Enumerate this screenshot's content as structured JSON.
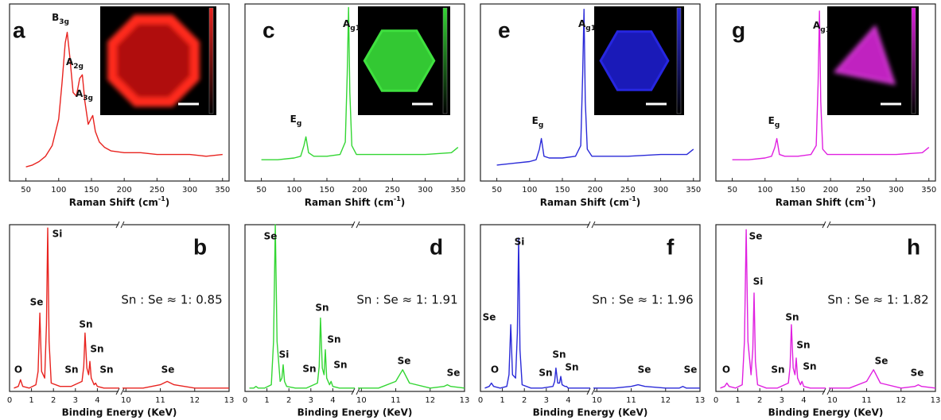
{
  "chart_data": [
    {
      "type": "line",
      "panel": "a",
      "xlabel": [
        "Raman Shift (cm",
        "-1",
        ")"
      ],
      "color": "#e8231f",
      "x": [
        50,
        60,
        70,
        80,
        90,
        100,
        105,
        110,
        113,
        117,
        122,
        127,
        132,
        136,
        140,
        145,
        149,
        152,
        156,
        162,
        170,
        180,
        200,
        225,
        250,
        275,
        300,
        325,
        350
      ],
      "values": [
        8,
        9,
        11,
        14,
        20,
        35,
        55,
        78,
        84,
        70,
        50,
        48,
        58,
        60,
        45,
        32,
        35,
        37,
        28,
        22,
        19,
        17,
        16,
        16,
        15,
        15,
        15,
        14,
        15
      ],
      "xlim": [
        25,
        360
      ],
      "xticks": [
        50,
        100,
        150,
        200,
        250,
        300,
        350
      ],
      "ylim": [
        0,
        100
      ],
      "peaks": [
        {
          "main": "B",
          "sub": "3g"
        },
        {
          "main": "A",
          "sub": "2g"
        },
        {
          "main": "A",
          "sub": "3g"
        }
      ]
    },
    {
      "type": "line",
      "panel": "b",
      "xlabel": "Binding Energy (KeV)",
      "ratio": "Sn : Se ≈ 1: 0.85",
      "color": "#e8231f",
      "x": [
        0.2,
        0.4,
        0.5,
        0.6,
        0.9,
        1.2,
        1.3,
        1.38,
        1.46,
        1.6,
        1.68,
        1.74,
        1.8,
        1.9,
        2.3,
        2.8,
        3.3,
        3.38,
        3.44,
        3.52,
        3.6,
        3.66,
        3.72,
        3.85,
        3.92,
        4.0,
        4.3,
        4.7,
        5.0,
        9.9,
        10.5,
        11.0,
        11.2,
        11.4,
        12.0,
        12.4,
        12.5,
        12.6,
        13.0
      ],
      "values": [
        2,
        3,
        7,
        3,
        2,
        4,
        12,
        47,
        12,
        8,
        40,
        98,
        30,
        5,
        3,
        3,
        6,
        15,
        35,
        14,
        10,
        18,
        8,
        4,
        5,
        3,
        2,
        2,
        2,
        2,
        2,
        4,
        6,
        4,
        2,
        2,
        2,
        2,
        2
      ],
      "xlim": [
        0,
        13
      ],
      "xbreak": [
        5,
        9.9
      ],
      "xticks": [
        0,
        1,
        2,
        3,
        4,
        10,
        11,
        12,
        13
      ],
      "ylim": [
        0,
        100
      ],
      "peaks": [
        "O",
        "Se",
        "Si",
        "Sn",
        "Sn",
        "Sn",
        "Sn",
        "Se"
      ]
    },
    {
      "type": "line",
      "panel": "c",
      "xlabel": [
        "Raman Shift (cm",
        "-1",
        ")"
      ],
      "color": "#33d633",
      "x": [
        50,
        75,
        100,
        110,
        115,
        118,
        122,
        130,
        150,
        170,
        178,
        181,
        183,
        185,
        188,
        195,
        220,
        250,
        300,
        340,
        350
      ],
      "values": [
        12,
        12,
        13,
        14,
        20,
        25,
        16,
        14,
        14,
        15,
        22,
        60,
        98,
        50,
        20,
        15,
        15,
        15,
        15,
        16,
        19
      ],
      "xlim": [
        25,
        360
      ],
      "xticks": [
        50,
        100,
        150,
        200,
        250,
        300,
        350
      ],
      "ylim": [
        0,
        100
      ],
      "peaks": [
        {
          "main": "A",
          "sub": "g1"
        },
        {
          "main": "E",
          "sub": "g"
        }
      ]
    },
    {
      "type": "line",
      "panel": "d",
      "xlabel": "Binding Energy (KeV)",
      "ratio": "Sn : Se ≈ 1: 1.91",
      "color": "#33d633",
      "x": [
        0.2,
        0.4,
        0.5,
        0.6,
        0.9,
        1.2,
        1.3,
        1.38,
        1.46,
        1.6,
        1.68,
        1.74,
        1.8,
        1.9,
        2.3,
        2.8,
        3.3,
        3.38,
        3.44,
        3.52,
        3.6,
        3.66,
        3.72,
        3.85,
        3.92,
        4.0,
        4.3,
        4.7,
        5.0,
        9.9,
        10.5,
        11.0,
        11.2,
        11.4,
        12.0,
        12.4,
        12.5,
        12.6,
        13.0
      ],
      "values": [
        2,
        2,
        3,
        2,
        2,
        4,
        30,
        100,
        30,
        6,
        8,
        16,
        6,
        3,
        2,
        2,
        5,
        15,
        44,
        14,
        10,
        25,
        8,
        4,
        6,
        3,
        2,
        2,
        2,
        2,
        2,
        6,
        13,
        5,
        2,
        3,
        4,
        3,
        2
      ],
      "xlim": [
        0,
        13
      ],
      "xbreak": [
        5,
        9.9
      ],
      "xticks": [
        0,
        1,
        2,
        3,
        4,
        10,
        11,
        12,
        13
      ],
      "ylim": [
        0,
        100
      ],
      "peaks": [
        "Se",
        "Si",
        "Sn",
        "Sn",
        "Sn",
        "Sn",
        "Se",
        "Se"
      ]
    },
    {
      "type": "line",
      "panel": "e",
      "xlabel": [
        "Raman Shift (cm",
        "-1",
        ")"
      ],
      "color": "#2a2ad8",
      "x": [
        50,
        75,
        100,
        110,
        115,
        118,
        122,
        130,
        150,
        170,
        178,
        181,
        183,
        185,
        188,
        195,
        220,
        250,
        300,
        340,
        350
      ],
      "values": [
        9,
        10,
        11,
        12,
        18,
        24,
        14,
        13,
        13,
        14,
        20,
        60,
        97,
        45,
        18,
        14,
        14,
        14,
        15,
        15,
        18
      ],
      "xlim": [
        25,
        360
      ],
      "xticks": [
        50,
        100,
        150,
        200,
        250,
        300,
        350
      ],
      "ylim": [
        0,
        100
      ],
      "peaks": [
        {
          "main": "A",
          "sub": "g1"
        },
        {
          "main": "E",
          "sub": "g"
        }
      ]
    },
    {
      "type": "line",
      "panel": "f",
      "xlabel": "Binding Energy (KeV)",
      "ratio": "Sn : Se ≈ 1: 1.96",
      "color": "#2a2ad8",
      "x": [
        0.2,
        0.4,
        0.5,
        0.6,
        0.9,
        1.2,
        1.3,
        1.38,
        1.46,
        1.6,
        1.68,
        1.74,
        1.8,
        1.9,
        2.3,
        2.8,
        3.3,
        3.38,
        3.44,
        3.52,
        3.6,
        3.66,
        3.72,
        3.85,
        3.92,
        4.0,
        4.3,
        4.7,
        5.0,
        9.9,
        10.5,
        11.0,
        11.2,
        11.4,
        12.0,
        12.4,
        12.5,
        12.6,
        13.0
      ],
      "values": [
        2,
        3,
        5,
        3,
        2,
        3,
        10,
        40,
        10,
        8,
        35,
        92,
        25,
        4,
        2,
        2,
        3,
        6,
        14,
        5,
        5,
        9,
        4,
        3,
        3,
        2,
        2,
        2,
        2,
        2,
        2,
        3,
        4,
        3,
        2,
        2,
        3,
        2,
        2
      ],
      "xlim": [
        0,
        13
      ],
      "xbreak": [
        5,
        9.9
      ],
      "xticks": [
        0,
        1,
        2,
        3,
        4,
        10,
        11,
        12,
        13
      ],
      "ylim": [
        0,
        100
      ],
      "peaks": [
        "Se",
        "Si",
        "O",
        "Sn",
        "Sn",
        "Sn",
        "Se",
        "Se"
      ]
    },
    {
      "type": "line",
      "panel": "g",
      "xlabel": [
        "Raman Shift (cm",
        "-1",
        ")"
      ],
      "color": "#e020e0",
      "x": [
        50,
        75,
        100,
        110,
        115,
        118,
        122,
        130,
        150,
        170,
        178,
        181,
        183,
        185,
        188,
        195,
        220,
        250,
        300,
        340,
        350
      ],
      "values": [
        12,
        12,
        13,
        14,
        19,
        24,
        15,
        14,
        14,
        15,
        20,
        55,
        96,
        45,
        18,
        15,
        15,
        15,
        15,
        16,
        19
      ],
      "xlim": [
        25,
        360
      ],
      "xticks": [
        50,
        100,
        150,
        200,
        250,
        300,
        350
      ],
      "ylim": [
        0,
        100
      ],
      "peaks": [
        {
          "main": "A",
          "sub": "g1"
        },
        {
          "main": "E",
          "sub": "g"
        }
      ]
    },
    {
      "type": "line",
      "panel": "h",
      "xlabel": "Binding Energy (KeV)",
      "ratio": "Sn : Se ≈ 1: 1.82",
      "color": "#e020e0",
      "x": [
        0.2,
        0.4,
        0.5,
        0.6,
        0.9,
        1.2,
        1.3,
        1.38,
        1.46,
        1.6,
        1.68,
        1.74,
        1.8,
        1.9,
        2.3,
        2.8,
        3.3,
        3.38,
        3.44,
        3.52,
        3.6,
        3.66,
        3.72,
        3.85,
        3.92,
        4.0,
        4.3,
        4.7,
        5.0,
        9.9,
        10.5,
        11.0,
        11.2,
        11.4,
        12.0,
        12.4,
        12.5,
        12.6,
        13.0
      ],
      "values": [
        2,
        3,
        5,
        3,
        2,
        4,
        30,
        97,
        30,
        10,
        25,
        59,
        18,
        4,
        2,
        2,
        5,
        15,
        40,
        14,
        10,
        20,
        8,
        4,
        6,
        3,
        2,
        2,
        2,
        2,
        2,
        6,
        13,
        5,
        2,
        3,
        4,
        3,
        2
      ],
      "xlim": [
        0,
        13
      ],
      "xbreak": [
        5,
        9.9
      ],
      "xticks": [
        0,
        1,
        2,
        3,
        4,
        10,
        11,
        12,
        13
      ],
      "ylim": [
        0,
        100
      ],
      "peaks": [
        "Se",
        "Si",
        "O",
        "Sn",
        "Sn",
        "Sn",
        "Sn",
        "Se",
        "Se"
      ]
    }
  ]
}
